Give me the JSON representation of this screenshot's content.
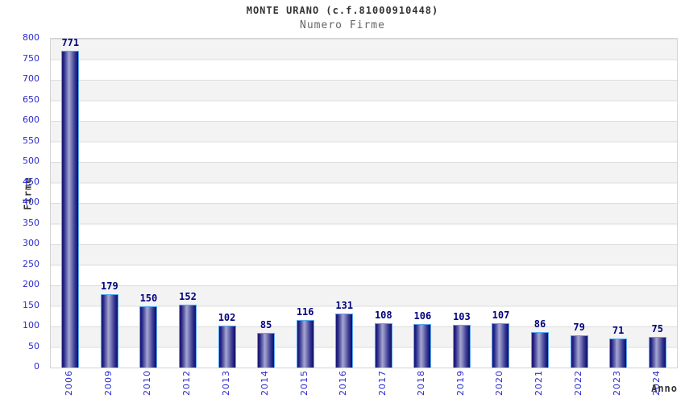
{
  "chart_data": {
    "type": "bar",
    "title": "MONTE URANO (c.f.81000910448)",
    "subtitle": "Numero Firme",
    "xlabel": "Anno",
    "ylabel": "Firme",
    "categories": [
      "2006",
      "2009",
      "2010",
      "2012",
      "2013",
      "2014",
      "2015",
      "2016",
      "2017",
      "2018",
      "2019",
      "2020",
      "2021",
      "2022",
      "2023",
      "2024"
    ],
    "values": [
      771,
      179,
      150,
      152,
      102,
      85,
      116,
      131,
      108,
      106,
      103,
      107,
      86,
      79,
      71,
      75
    ],
    "ylim": [
      0,
      800
    ],
    "ytick_step": 50,
    "legend": "none",
    "grid": "horizontal gridlines with alternating gray/white bands every 50 units",
    "bar_labels": "value shown above each bar",
    "colors": {
      "bar_dark": "#17176e",
      "bar_highlight": "#a6a6d4",
      "bar_border": "#58a8f2",
      "axis_tick_label": "#2a2acc",
      "value_label": "#000080",
      "band_gray": "#f3f3f3",
      "gridline": "#dddddd",
      "title": "#333333",
      "subtitle": "#666666",
      "background": "#ffffff"
    }
  }
}
